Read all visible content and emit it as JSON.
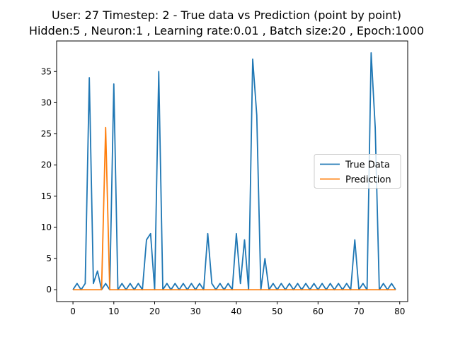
{
  "chart_data": {
    "type": "line",
    "title_line1": "User: 27 Timestep: 2 - True data vs Prediction (point by point)",
    "title_line2": "Hidden:5 , Neuron:1 , Learning rate:0.01 , Batch size:20 , Epoch:1000",
    "xlabel": "",
    "ylabel": "",
    "xlim": [
      -4,
      81.95
    ],
    "ylim": [
      -1.9,
      39.9
    ],
    "xticks": [
      0,
      10,
      20,
      30,
      40,
      50,
      60,
      70,
      80
    ],
    "yticks": [
      0,
      5,
      10,
      15,
      20,
      25,
      30,
      35
    ],
    "grid": false,
    "legend_position": "center-right",
    "x": [
      0,
      1,
      2,
      3,
      4,
      5,
      6,
      7,
      8,
      9,
      10,
      11,
      12,
      13,
      14,
      15,
      16,
      17,
      18,
      19,
      20,
      21,
      22,
      23,
      24,
      25,
      26,
      27,
      28,
      29,
      30,
      31,
      32,
      33,
      34,
      35,
      36,
      37,
      38,
      39,
      40,
      41,
      42,
      43,
      44,
      45,
      46,
      47,
      48,
      49,
      50,
      51,
      52,
      53,
      54,
      55,
      56,
      57,
      58,
      59,
      60,
      61,
      62,
      63,
      64,
      65,
      66,
      67,
      68,
      69,
      70,
      71,
      72,
      73,
      74,
      75,
      76,
      77,
      78,
      79
    ],
    "series": [
      {
        "name": "True Data",
        "color": "#1f77b4",
        "values": [
          0,
          1,
          0,
          1,
          34,
          1,
          3,
          0,
          1,
          0,
          33,
          0,
          1,
          0,
          1,
          0,
          1,
          0,
          8,
          9,
          0,
          35,
          0,
          1,
          0,
          1,
          0,
          1,
          0,
          1,
          0,
          1,
          0,
          9,
          1,
          0,
          1,
          0,
          1,
          0,
          9,
          1,
          8,
          0,
          37,
          28,
          0,
          5,
          0,
          1,
          0,
          1,
          0,
          1,
          0,
          1,
          0,
          1,
          0,
          1,
          0,
          1,
          0,
          1,
          0,
          1,
          0,
          1,
          0,
          8,
          0,
          1,
          0,
          38,
          26,
          0,
          1,
          0,
          1,
          0
        ]
      },
      {
        "name": "Prediction",
        "color": "#ff7f0e",
        "values": [
          0,
          0,
          0,
          0,
          0,
          0,
          0,
          0,
          26,
          0,
          0,
          0,
          0,
          0,
          0,
          0,
          0,
          0,
          0,
          0,
          0,
          0,
          0,
          0,
          0,
          0,
          0,
          0,
          0,
          0,
          0,
          0,
          0,
          0,
          0,
          0,
          0,
          0,
          0,
          0,
          0,
          0,
          0,
          0,
          0,
          0,
          0,
          0,
          0,
          0,
          0,
          0,
          0,
          0,
          0,
          0,
          0,
          0,
          0,
          0,
          0,
          0,
          0,
          0,
          0,
          0,
          0,
          0,
          0,
          0,
          0,
          0,
          0,
          0,
          0,
          0,
          0,
          0,
          0,
          0
        ]
      }
    ]
  }
}
